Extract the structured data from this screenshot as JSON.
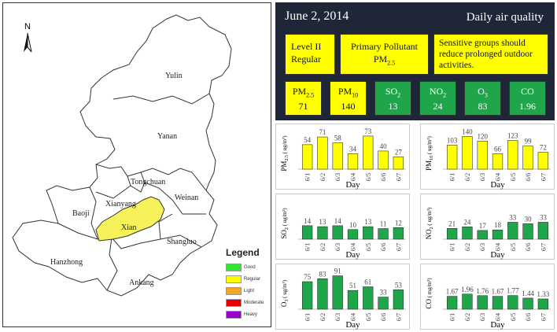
{
  "map": {
    "north_label": "N",
    "cities": [
      "Yulin",
      "Yanan",
      "Tongchuan",
      "Weinan",
      "Xianyang",
      "Baoji",
      "Xian",
      "Shangluo",
      "Hanzhong",
      "Ankang"
    ],
    "highlighted_city": "Xian",
    "highlight_color": "#f5f25a",
    "legend": {
      "title": "Legend",
      "items": [
        {
          "label": "Good",
          "color": "#33e633"
        },
        {
          "label": "Regular",
          "color": "#ffff00"
        },
        {
          "label": "Light",
          "color": "#f5a623"
        },
        {
          "label": "Moderate",
          "color": "#e60000"
        },
        {
          "label": "Heavy",
          "color": "#9900cc"
        }
      ]
    }
  },
  "header": {
    "date": "June 2, 2014",
    "title": "Daily air quality",
    "level_line1": "Level II",
    "level_line2": "Regular",
    "primary_label": "Primary Pollutant",
    "primary_value": "PM",
    "primary_sub": "2.5",
    "advice": "Sensitive groups should reduce prolonged outdoor activities.",
    "pollutants": [
      {
        "name": "PM",
        "sub": "2.5",
        "value": "71",
        "color": "yellow"
      },
      {
        "name": "PM",
        "sub": "10",
        "value": "140",
        "color": "yellow"
      },
      {
        "name": "SO",
        "sub": "2",
        "value": "13",
        "color": "green"
      },
      {
        "name": "NO",
        "sub": "2",
        "value": "24",
        "color": "green"
      },
      {
        "name": "O",
        "sub": "3",
        "value": "83",
        "color": "green"
      },
      {
        "name": "CO",
        "sub": "",
        "value": "1.96",
        "color": "green"
      }
    ]
  },
  "colors": {
    "yellow": "#ffff00",
    "green": "#1fa64a",
    "header_bg": "#1f2637"
  },
  "chart_data": [
    {
      "type": "bar",
      "id": "pm25",
      "ylabel_main": "PM",
      "ylabel_sub": "2.5",
      "ylabel_unit": "( ug/m³)",
      "xlabel": "Day",
      "categories": [
        "6/1",
        "6/2",
        "6/3",
        "6/4",
        "6/5",
        "6/6",
        "6/7"
      ],
      "values": [
        54,
        71,
        58,
        34,
        73,
        40,
        27
      ],
      "labels": [
        "54",
        "71",
        "58",
        "34",
        "73",
        "40",
        "27"
      ],
      "color": "#ffff00",
      "ymax": 85
    },
    {
      "type": "bar",
      "id": "pm10",
      "ylabel_main": "PM",
      "ylabel_sub": "10",
      "ylabel_unit": "( ug/m³)",
      "xlabel": "Day",
      "categories": [
        "6/1",
        "6/2",
        "6/3",
        "6/4",
        "6/5",
        "6/6",
        "6/7"
      ],
      "values": [
        103,
        140,
        120,
        66,
        123,
        99,
        72
      ],
      "labels": [
        "103",
        "140",
        "120",
        "66",
        "123",
        "99",
        "72"
      ],
      "color": "#ffff00",
      "ymax": 165
    },
    {
      "type": "bar",
      "id": "so2",
      "ylabel_main": "SO",
      "ylabel_sub": "2",
      "ylabel_unit": "( ug/m³)",
      "xlabel": "Day",
      "categories": [
        "6/1",
        "6/2",
        "6/3",
        "6/4",
        "6/5",
        "6/6",
        "6/7"
      ],
      "values": [
        14,
        13,
        14,
        10,
        13,
        11,
        12
      ],
      "labels": [
        "14",
        "13",
        "14",
        "10",
        "13",
        "11",
        "12"
      ],
      "color": "#1fa64a",
      "ymax": 40
    },
    {
      "type": "bar",
      "id": "no2",
      "ylabel_main": "NO",
      "ylabel_sub": "2",
      "ylabel_unit": "( ug/m³)",
      "xlabel": "Day",
      "categories": [
        "6/1",
        "6/2",
        "6/3",
        "6/4",
        "6/5",
        "6/6",
        "6/7"
      ],
      "values": [
        21,
        24,
        17,
        18,
        33,
        30,
        33
      ],
      "labels": [
        "21",
        "24",
        "17",
        "18",
        "33",
        "30",
        "33"
      ],
      "color": "#1fa64a",
      "ymax": 75
    },
    {
      "type": "bar",
      "id": "o3",
      "ylabel_main": "O",
      "ylabel_sub": "3",
      "ylabel_unit": "( ug/m³)",
      "xlabel": "Day",
      "categories": [
        "6/1",
        "6/2",
        "6/3",
        "6/4",
        "6/5",
        "6/6",
        "6/7"
      ],
      "values": [
        75,
        83,
        91,
        51,
        61,
        33,
        53
      ],
      "labels": [
        "75",
        "83",
        "91",
        "51",
        "61",
        "33",
        "53"
      ],
      "color": "#1fa64a",
      "ymax": 105
    },
    {
      "type": "bar",
      "id": "co",
      "ylabel_main": "CO",
      "ylabel_sub": "",
      "ylabel_unit": "( mg/m³)",
      "xlabel": "Day",
      "categories": [
        "6/1",
        "6/2",
        "6/3",
        "6/4",
        "6/5",
        "6/6",
        "6/7"
      ],
      "values": [
        1.67,
        1.96,
        1.76,
        1.67,
        1.77,
        1.44,
        1.33
      ],
      "labels": [
        "1.67",
        "1.96",
        "1.76",
        "1.67",
        "1.77",
        "1.44",
        "1.33"
      ],
      "color": "#1fa64a",
      "ymax": 5
    }
  ]
}
